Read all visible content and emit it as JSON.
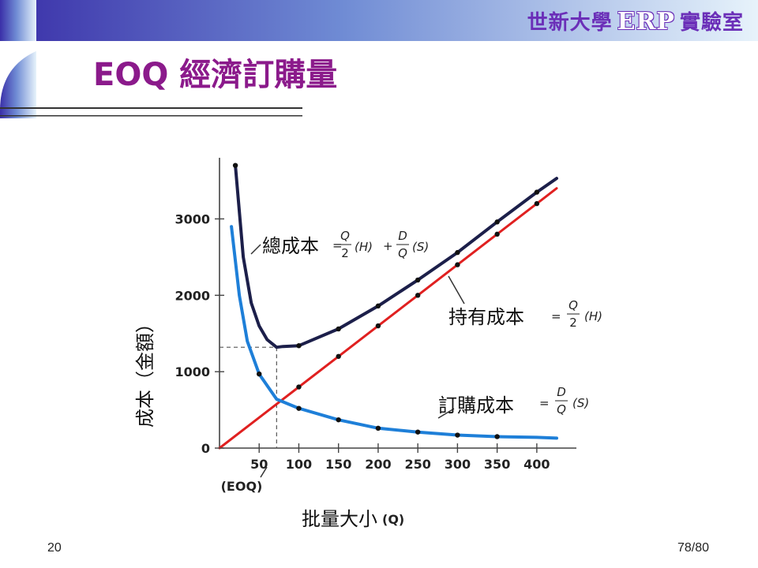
{
  "banner": {
    "prefix": "世新大學",
    "erp": "ERP",
    "suffix": "實驗室"
  },
  "slide": {
    "title": "EOQ 經濟訂購量",
    "page_number": "20",
    "page_counter": "78/80"
  },
  "colors": {
    "total_cost": "#1c1f4a",
    "holding_cost": "#e02020",
    "ordering_cost": "#1e7fd8",
    "title": "#8b1a8b",
    "banner_accent": "#6b2fb8"
  },
  "chart_data": {
    "type": "line",
    "ylabel": "成本（金額）",
    "xlabel": "批量大小",
    "xlabel_symbol": "(Q)",
    "xlim": [
      0,
      430
    ],
    "ylim": [
      0,
      3800
    ],
    "x_ticks": [
      50,
      100,
      150,
      200,
      250,
      300,
      350,
      400
    ],
    "y_ticks": [
      0,
      1000,
      2000,
      3000
    ],
    "eoq_marker": {
      "label": "(EOQ)",
      "x": 72,
      "y": 1320
    },
    "series": [
      {
        "name": "總成本",
        "formula": "Q/2 (H) + D/Q (S)",
        "x": [
          20,
          30,
          40,
          50,
          60,
          72,
          80,
          100,
          150,
          200,
          250,
          300,
          350,
          400,
          425
        ],
        "y": [
          3700,
          2500,
          1900,
          1600,
          1420,
          1320,
          1330,
          1340,
          1560,
          1860,
          2200,
          2560,
          2960,
          3350,
          3530
        ]
      },
      {
        "name": "持有成本",
        "formula": "Q/2 (H)",
        "x": [
          0,
          50,
          100,
          150,
          200,
          250,
          300,
          350,
          400,
          425
        ],
        "y": [
          0,
          400,
          800,
          1200,
          1600,
          2000,
          2400,
          2800,
          3200,
          3400
        ]
      },
      {
        "name": "訂購成本",
        "formula": "D/Q (S)",
        "x": [
          15,
          25,
          35,
          50,
          72,
          100,
          150,
          200,
          250,
          300,
          350,
          400,
          425
        ],
        "y": [
          2900,
          2000,
          1400,
          970,
          640,
          520,
          370,
          260,
          210,
          170,
          150,
          140,
          130
        ]
      }
    ],
    "dots": [
      {
        "series": "總成本",
        "x": [
          20,
          100,
          150,
          200,
          250,
          300,
          350,
          400
        ]
      },
      {
        "series": "持有成本",
        "x": [
          100,
          150,
          200,
          250,
          300,
          350,
          400
        ]
      },
      {
        "series": "訂購成本",
        "x": [
          50,
          100,
          150,
          200,
          250,
          300,
          350
        ]
      }
    ],
    "formula_text": {
      "Q": "Q",
      "D": "D",
      "two": "2",
      "H": "(H)",
      "S": "(S)",
      "plus": "+",
      "eq": "="
    }
  }
}
